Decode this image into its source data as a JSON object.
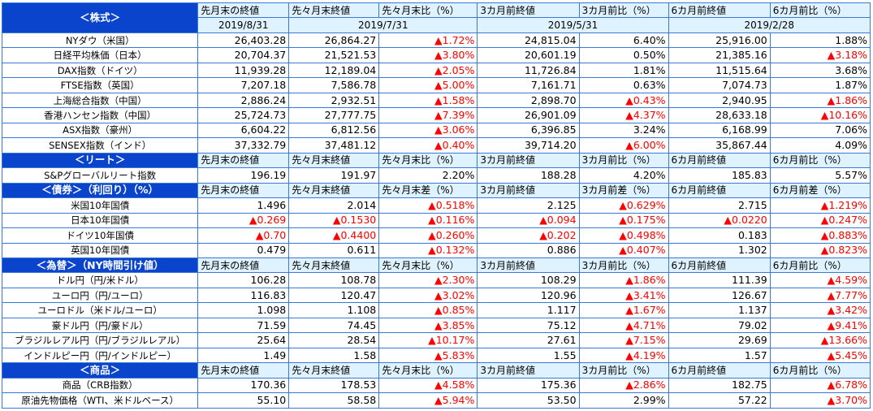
{
  "headers_ratio": [
    "先月末の終値",
    "先々月末終値",
    "先々月末比（%）",
    "3カ月前終値",
    "3カ月前比（%）",
    "6カ月前終値",
    "6カ月前比（%）"
  ],
  "headers_diff": [
    "先月末の終値",
    "先々月末終値",
    "先々月末差（%）",
    "3カ月前終値",
    "3カ月前差（%）",
    "6カ月前終値",
    "6カ月前差（%）"
  ],
  "dates": [
    "2019/8/31",
    "2019/7/31",
    "2019/5/31",
    "2019/2/28"
  ],
  "sections": [
    {
      "title": "＜株式＞",
      "header_key": "ratio",
      "has_dates": true,
      "rows": [
        {
          "label": "NYダウ（米国）",
          "values": [
            "26,403.28",
            "26,864.27",
            "▲1.72%",
            "24,815.04",
            "6.40%",
            "25,916.00",
            "1.88%"
          ]
        },
        {
          "label": "日経平均株価（日本）",
          "values": [
            "20,704.37",
            "21,521.53",
            "▲3.80%",
            "20,601.19",
            "0.50%",
            "21,385.16",
            "▲3.18%"
          ]
        },
        {
          "label": "DAX指数（ドイツ）",
          "values": [
            "11,939.28",
            "12,189.04",
            "▲2.05%",
            "11,726.84",
            "1.81%",
            "11,515.64",
            "3.68%"
          ]
        },
        {
          "label": "FTSE指数（英国）",
          "values": [
            "7,207.18",
            "7,586.78",
            "▲5.00%",
            "7,161.71",
            "0.63%",
            "7,074.73",
            "1.87%"
          ]
        },
        {
          "label": "上海総合指数（中国）",
          "values": [
            "2,886.24",
            "2,932.51",
            "▲1.58%",
            "2,898.70",
            "▲0.43%",
            "2,940.95",
            "▲1.86%"
          ]
        },
        {
          "label": "香港ハンセン指数（中国）",
          "values": [
            "25,724.73",
            "27,777.75",
            "▲7.39%",
            "26,901.09",
            "▲4.37%",
            "28,633.18",
            "▲10.16%"
          ]
        },
        {
          "label": "ASX指数（豪州）",
          "values": [
            "6,604.22",
            "6,812.56",
            "▲3.06%",
            "6,396.85",
            "3.24%",
            "6,168.99",
            "7.06%"
          ]
        },
        {
          "label": "SENSEX指数（インド）",
          "values": [
            "37,332.79",
            "37,481.12",
            "▲0.40%",
            "39,714.20",
            "▲6.00%",
            "35,867.44",
            "4.09%"
          ]
        }
      ]
    },
    {
      "title": "＜リート＞",
      "header_key": "ratio",
      "has_dates": false,
      "rows": [
        {
          "label": "S&Pグローバルリート指数",
          "values": [
            "196.19",
            "191.97",
            "2.20%",
            "188.28",
            "4.20%",
            "185.83",
            "5.57%"
          ]
        }
      ]
    },
    {
      "title": "＜債券＞（利回り）（%）",
      "header_key": "diff",
      "has_dates": false,
      "rows": [
        {
          "label": "米国10年国債",
          "values": [
            "1.496",
            "2.014",
            "▲0.518%",
            "2.125",
            "▲0.629%",
            "2.715",
            "▲1.219%"
          ]
        },
        {
          "label": "日本10年国債",
          "values": [
            "▲0.269",
            "▲0.1530",
            "▲0.116%",
            "▲0.094",
            "▲0.175%",
            "▲0.0220",
            "▲0.247%"
          ]
        },
        {
          "label": "ドイツ10年国債",
          "values": [
            "▲0.70",
            "▲0.4400",
            "▲0.260%",
            "▲0.202",
            "▲0.498%",
            "0.183",
            "▲0.883%"
          ]
        },
        {
          "label": "英国10年国債",
          "values": [
            "0.479",
            "0.611",
            "▲0.132%",
            "0.886",
            "▲0.407%",
            "1.302",
            "▲0.823%"
          ]
        }
      ]
    },
    {
      "title": "＜為替＞（NY時間引け値）",
      "header_key": "ratio",
      "has_dates": false,
      "rows": [
        {
          "label": "ドル円（円/米ドル）",
          "values": [
            "106.28",
            "108.78",
            "▲2.30%",
            "108.29",
            "▲1.86%",
            "111.39",
            "▲4.59%"
          ]
        },
        {
          "label": "ユーロ円（円/ユーロ）",
          "values": [
            "116.83",
            "120.47",
            "▲3.02%",
            "120.96",
            "▲3.41%",
            "126.67",
            "▲7.77%"
          ]
        },
        {
          "label": "ユーロドル（米ドル/ユーロ）",
          "values": [
            "1.098",
            "1.108",
            "▲0.85%",
            "1.117",
            "▲1.67%",
            "1.137",
            "▲3.42%"
          ]
        },
        {
          "label": "豪ドル円（円/豪ドル）",
          "values": [
            "71.59",
            "74.45",
            "▲3.85%",
            "75.12",
            "▲4.71%",
            "79.02",
            "▲9.41%"
          ]
        },
        {
          "label": "ブラジルレアル円（円/ブラジルレアル）",
          "values": [
            "25.64",
            "28.54",
            "▲10.17%",
            "27.61",
            "▲7.15%",
            "29.69",
            "▲13.66%"
          ]
        },
        {
          "label": "インドルピー円（円/インドルピー）",
          "values": [
            "1.49",
            "1.58",
            "▲5.83%",
            "1.55",
            "▲4.19%",
            "1.57",
            "▲5.45%"
          ]
        }
      ]
    },
    {
      "title": "＜商品＞",
      "header_key": "ratio",
      "has_dates": false,
      "rows": [
        {
          "label": "商品（CRB指数）",
          "values": [
            "170.36",
            "178.53",
            "▲4.58%",
            "175.36",
            "▲2.86%",
            "182.75",
            "▲6.78%"
          ]
        },
        {
          "label": "原油先物価格（WTI、米ドルベース）",
          "values": [
            "55.10",
            "58.58",
            "▲5.94%",
            "53.50",
            "2.99%",
            "57.22",
            "▲3.70%"
          ]
        }
      ]
    }
  ]
}
